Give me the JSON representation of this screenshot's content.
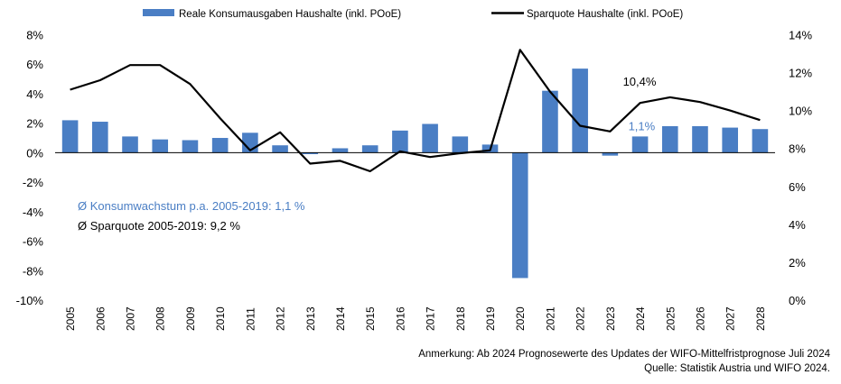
{
  "chart_data": {
    "type": "bar+line",
    "title": "",
    "categories": [
      "2005",
      "2006",
      "2007",
      "2008",
      "2009",
      "2010",
      "2011",
      "2012",
      "2013",
      "2014",
      "2015",
      "2016",
      "2017",
      "2018",
      "2019",
      "2020",
      "2021",
      "2022",
      "2023",
      "2024",
      "2025",
      "2026",
      "2027",
      "2028"
    ],
    "series": [
      {
        "name": "Reale Konsumausgaben Haushalte (inkl. POoE)",
        "type": "bar",
        "axis": "left",
        "color": "#4a7ec4",
        "values": [
          2.2,
          2.1,
          1.1,
          0.9,
          0.85,
          1.0,
          1.35,
          0.5,
          -0.1,
          0.3,
          0.5,
          1.5,
          1.95,
          1.1,
          0.55,
          -8.5,
          4.2,
          5.7,
          -0.2,
          1.1,
          1.8,
          1.8,
          1.7,
          1.6
        ]
      },
      {
        "name": "Sparquote Haushalte (inkl. POoE)",
        "type": "line",
        "axis": "right",
        "color": "#000000",
        "values": [
          11.1,
          11.6,
          12.4,
          12.4,
          11.4,
          9.6,
          7.9,
          8.85,
          7.2,
          7.35,
          6.8,
          7.85,
          7.55,
          7.75,
          7.9,
          13.2,
          11.0,
          9.2,
          8.9,
          10.4,
          10.7,
          10.45,
          10.0,
          9.5
        ]
      }
    ],
    "left_axis": {
      "ylim": [
        -10,
        8
      ],
      "ticks": [
        8,
        6,
        4,
        2,
        0,
        -2,
        -4,
        -6,
        -8,
        -10
      ],
      "tick_labels": [
        "8%",
        "6%",
        "4%",
        "2%",
        "0%",
        "-2%",
        "-4%",
        "-6%",
        "-8%",
        "-10%"
      ]
    },
    "right_axis": {
      "ylim": [
        0,
        14
      ],
      "ticks": [
        14,
        12,
        10,
        8,
        6,
        4,
        2,
        0
      ],
      "tick_labels": [
        "14%",
        "12%",
        "10%",
        "8%",
        "6%",
        "4%",
        "2%",
        "0%"
      ]
    },
    "grid": false,
    "legend": {
      "position": "top",
      "entries": [
        "Reale Konsumausgaben Haushalte (inkl. POoE)",
        "Sparquote Haushalte (inkl. POoE)"
      ]
    },
    "data_labels": [
      {
        "series": "Sparquote Haushalte (inkl. POoE)",
        "category": "2024",
        "text": "10,4%",
        "color": "#000000"
      },
      {
        "series": "Reale Konsumausgaben Haushalte (inkl. POoE)",
        "category": "2024",
        "text": "1,1%",
        "color": "#4a7ec4"
      }
    ],
    "annotations": [
      {
        "text": "Ø Konsumwachstum p.a. 2005-2019: 1,1 %",
        "color": "#4a7ec4"
      },
      {
        "text": "Ø Sparquote 2005-2019: 9,2 %",
        "color": "#000000"
      }
    ]
  },
  "footer": {
    "note": "Anmerkung: Ab 2024 Prognosewerte des Updates der WIFO-Mittelfristprognose Juli 2024",
    "source": "Quelle: Statistik Austria und WIFO 2024."
  }
}
